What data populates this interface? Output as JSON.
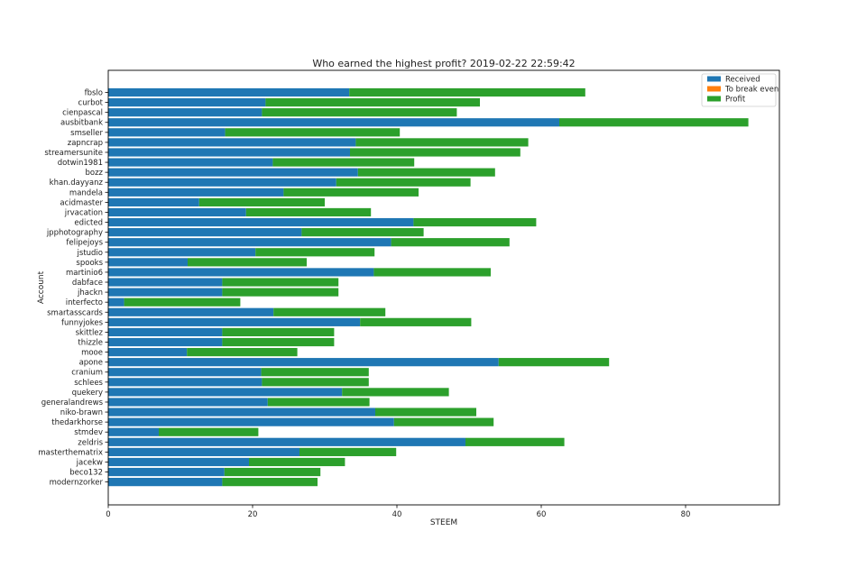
{
  "chart_data": {
    "type": "bar",
    "orientation": "horizontal",
    "stacked": true,
    "title": "Who earned the highest profit? 2019-02-22 22:59:42",
    "xlabel": "STEEM",
    "ylabel": "Account",
    "xlim": [
      0,
      93
    ],
    "xticks": [
      0,
      20,
      40,
      60,
      80
    ],
    "grid": false,
    "legend_position": "top-right",
    "categories": [
      "fbslo",
      "curbot",
      "cienpascal",
      "ausbitbank",
      "smseller",
      "zapncrap",
      "streamersunite",
      "dotwin1981",
      "bozz",
      "khan.dayyanz",
      "mandela",
      "acidmaster",
      "jrvacation",
      "edicted",
      "jpphotography",
      "felipejoys",
      "jstudio",
      "spooks",
      "martinio6",
      "dabface",
      "jhackn",
      "interfecto",
      "smartasscards",
      "funnyjokes",
      "skittlez",
      "thizzle",
      "mooe",
      "apone",
      "cranium",
      "schlees",
      "quekery",
      "generalandrews",
      "niko-brawn",
      "thedarkhorse",
      "stmdev",
      "zeldris",
      "masterthematrix",
      "jacekw",
      "beco132",
      "modernzorker"
    ],
    "series": [
      {
        "name": "Received",
        "color": "#1f77b4",
        "values": [
          33.4,
          21.8,
          21.3,
          62.5,
          16.2,
          34.3,
          33.5,
          22.8,
          34.6,
          31.6,
          24.3,
          12.6,
          19.1,
          42.3,
          26.8,
          39.2,
          20.4,
          11.0,
          36.8,
          15.8,
          15.8,
          2.2,
          22.9,
          34.9,
          15.8,
          15.8,
          10.9,
          54.1,
          21.2,
          21.3,
          32.4,
          22.1,
          37.0,
          39.6,
          7.0,
          49.5,
          26.5,
          19.5,
          16.1,
          15.8
        ]
      },
      {
        "name": "To break even",
        "color": "#ff7f0e",
        "values": [
          0,
          0,
          0,
          0,
          0,
          0,
          0,
          0,
          0,
          0,
          0,
          0,
          0,
          0,
          0,
          0,
          0,
          0,
          0,
          0,
          0,
          0,
          0,
          0,
          0,
          0,
          0,
          0,
          0,
          0,
          0,
          0,
          0,
          0,
          0,
          0,
          0,
          0,
          0,
          0
        ]
      },
      {
        "name": "Profit",
        "color": "#2ca02c",
        "values": [
          32.7,
          29.7,
          27.0,
          26.2,
          24.2,
          23.9,
          23.6,
          19.6,
          19.0,
          18.6,
          18.7,
          17.4,
          17.3,
          17.0,
          16.9,
          16.4,
          16.5,
          16.5,
          16.2,
          16.1,
          16.1,
          16.1,
          15.5,
          15.4,
          15.5,
          15.5,
          15.3,
          15.3,
          14.9,
          14.8,
          14.8,
          14.1,
          14.0,
          13.8,
          13.8,
          13.7,
          13.4,
          13.3,
          13.3,
          13.2
        ]
      }
    ]
  }
}
